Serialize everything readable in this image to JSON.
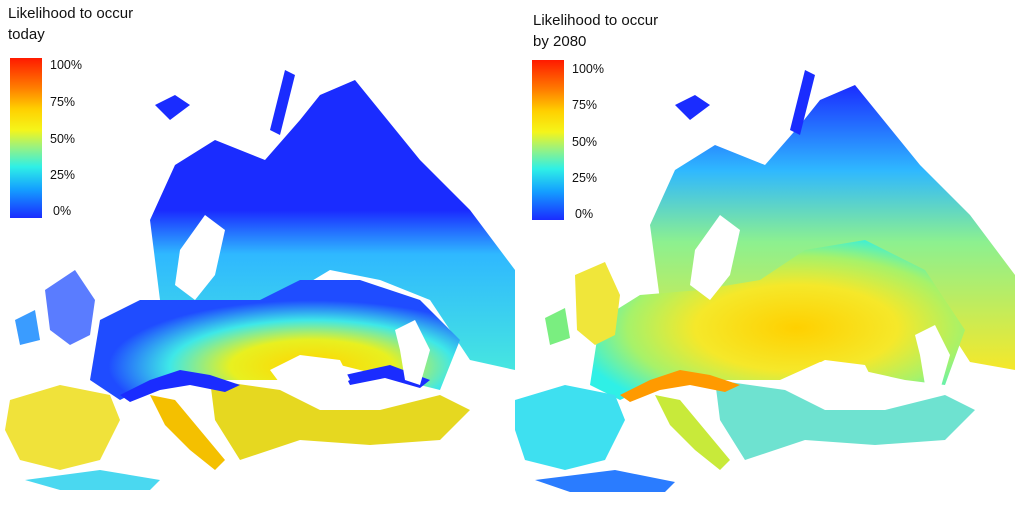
{
  "panels": [
    {
      "title_line1": "Likelihood to occur",
      "title_line2": "today",
      "legend_ticks": [
        "100%",
        "75%",
        "50%",
        "25%",
        "0%"
      ]
    },
    {
      "title_line1": "Likelihood to occur",
      "title_line2": "by 2080",
      "legend_ticks": [
        "100%",
        "75%",
        "50%",
        "25%",
        "0%"
      ]
    }
  ],
  "colors": {
    "scale_high": "#ff1a00",
    "scale_75": "#ff9a00",
    "scale_50": "#f5f51a",
    "scale_25": "#2ff0e6",
    "scale_low": "#1a2cff"
  }
}
